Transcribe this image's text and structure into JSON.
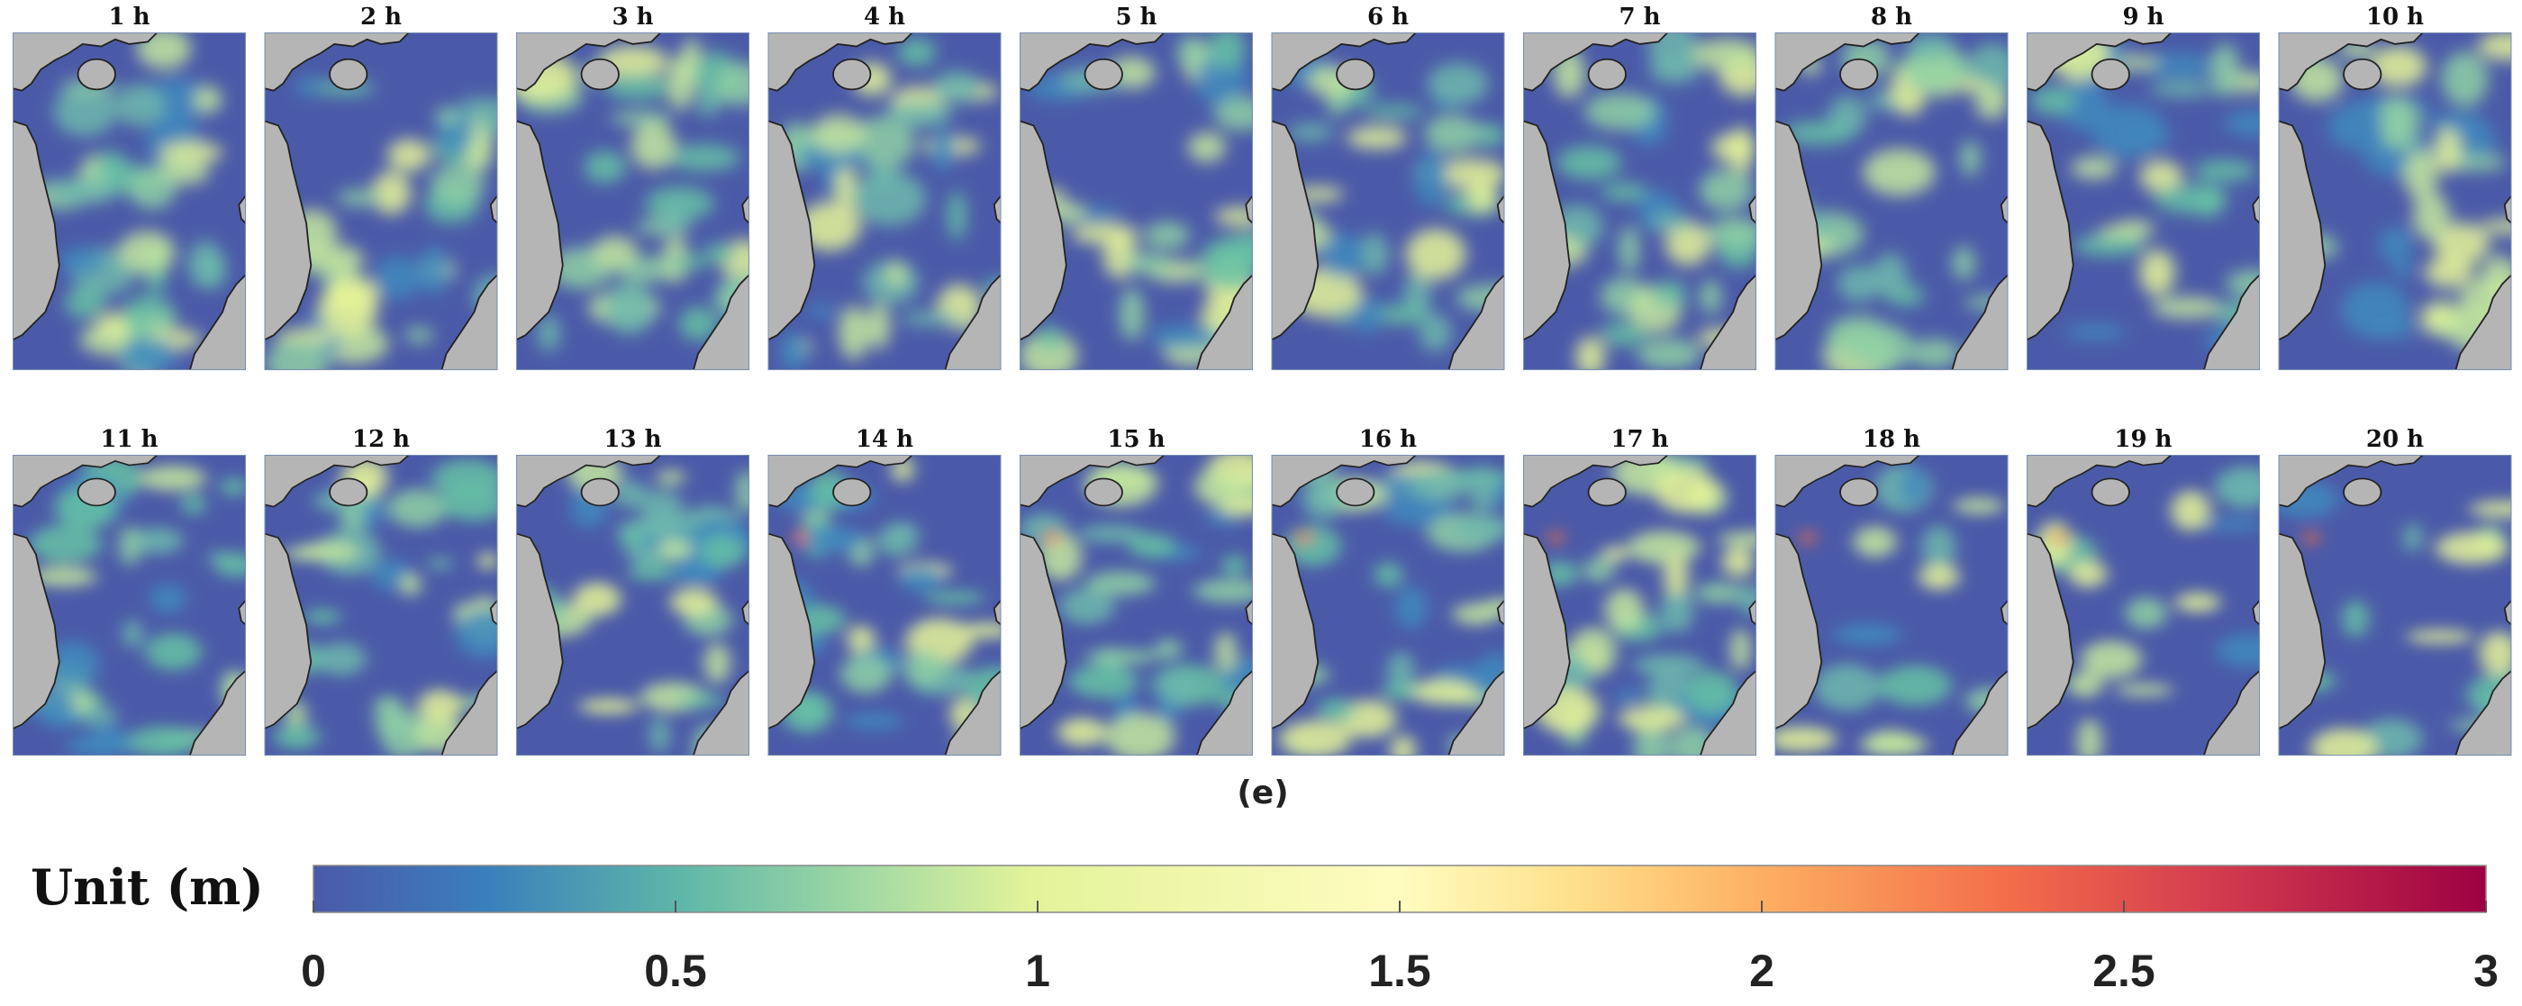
{
  "panels": [
    "1 h",
    "2 h",
    "3 h",
    "4 h",
    "5 h",
    "6 h",
    "7 h",
    "8 h",
    "9 h",
    "10 h",
    "11 h",
    "12 h",
    "13 h",
    "14 h",
    "15 h",
    "16 h",
    "17 h",
    "18 h",
    "19 h",
    "20 h"
  ],
  "caption": "(e)",
  "colorbar": {
    "label": "Unit (m)",
    "range": [
      0,
      3
    ],
    "ticks": [
      0,
      0.5,
      1,
      1.5,
      2,
      2.5,
      3
    ]
  }
}
